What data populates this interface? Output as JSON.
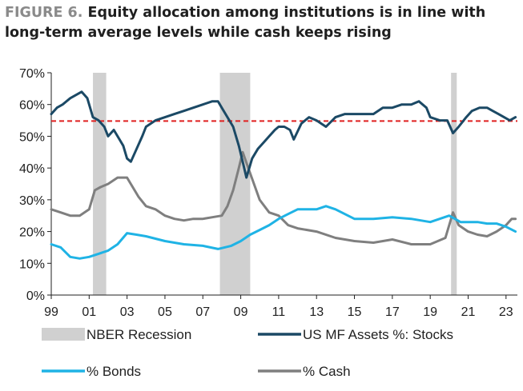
{
  "chart_data": {
    "type": "line",
    "title_prefix": "FIGURE 6.",
    "title": "Equity allocation among institutions is in line with long-term average levels while cash keeps rising",
    "x_tick_labels": [
      "99",
      "01",
      "03",
      "05",
      "07",
      "09",
      "11",
      "13",
      "15",
      "17",
      "19",
      "21",
      "23"
    ],
    "x_range": [
      1999.0,
      2023.6
    ],
    "y_tick_labels": [
      "0%",
      "10%",
      "20%",
      "30%",
      "40%",
      "50%",
      "60%",
      "70%"
    ],
    "y_range": [
      0,
      70
    ],
    "average_line": {
      "value": 54.8,
      "color": "#e02020"
    },
    "recessions": [
      {
        "start": 2001.2,
        "end": 2001.9
      },
      {
        "start": 2007.9,
        "end": 2009.5
      },
      {
        "start": 2020.1,
        "end": 2020.4
      }
    ],
    "legend": [
      {
        "label": "NBER Recession",
        "kind": "box",
        "color": "#d0d0d0"
      },
      {
        "label": "US MF Assets %: Stocks",
        "kind": "line",
        "color": "#1b4965"
      },
      {
        "label": "% Bonds",
        "kind": "line",
        "color": "#1fb3e5"
      },
      {
        "label": "% Cash",
        "kind": "line",
        "color": "#7f7f7f"
      }
    ],
    "series": [
      {
        "name": "US MF Assets %: Stocks",
        "color": "#1b4965",
        "x": [
          1999.0,
          1999.3,
          1999.6,
          2000.0,
          2000.3,
          2000.6,
          2000.9,
          2001.2,
          2001.5,
          2001.8,
          2002.0,
          2002.3,
          2002.6,
          2002.8,
          2003.0,
          2003.2,
          2003.5,
          2003.8,
          2004.0,
          2004.5,
          2005.0,
          2005.5,
          2006.0,
          2006.5,
          2007.0,
          2007.5,
          2007.8,
          2008.0,
          2008.3,
          2008.6,
          2008.9,
          2009.1,
          2009.3,
          2009.6,
          2009.9,
          2010.2,
          2010.5,
          2010.8,
          2011.0,
          2011.3,
          2011.6,
          2011.8,
          2012.2,
          2012.6,
          2013.0,
          2013.5,
          2014.0,
          2014.5,
          2015.0,
          2015.5,
          2016.0,
          2016.5,
          2017.0,
          2017.5,
          2018.0,
          2018.4,
          2018.8,
          2019.0,
          2019.5,
          2019.9,
          2020.2,
          2020.5,
          2020.9,
          2021.2,
          2021.6,
          2022.0,
          2022.3,
          2022.6,
          2022.9,
          2023.2,
          2023.5
        ],
        "values": [
          57,
          59,
          60,
          62,
          63,
          64,
          62,
          56,
          55,
          53,
          50,
          52,
          49,
          47,
          43,
          42,
          46,
          50,
          53,
          55,
          56,
          57,
          58,
          59,
          60,
          61,
          61,
          59,
          56,
          53,
          47,
          42,
          37,
          43,
          46,
          48,
          50,
          52,
          53,
          53,
          52,
          49,
          54,
          56,
          55,
          53,
          56,
          57,
          57,
          57,
          57,
          59,
          59,
          60,
          60,
          61,
          59,
          56,
          55,
          55,
          51,
          53,
          56,
          58,
          59,
          59,
          58,
          57,
          56,
          55,
          56
        ]
      },
      {
        "name": "% Bonds",
        "color": "#1fb3e5",
        "x": [
          1999.0,
          1999.5,
          2000.0,
          2000.5,
          2001.0,
          2001.5,
          2002.0,
          2002.5,
          2003.0,
          2003.5,
          2004.0,
          2005.0,
          2006.0,
          2007.0,
          2007.8,
          2008.5,
          2009.0,
          2009.5,
          2010.0,
          2010.5,
          2011.0,
          2011.5,
          2012.0,
          2012.5,
          2013.0,
          2013.5,
          2014.0,
          2015.0,
          2016.0,
          2017.0,
          2018.0,
          2019.0,
          2020.0,
          2020.3,
          2020.6,
          2021.0,
          2021.5,
          2022.0,
          2022.5,
          2023.0,
          2023.5
        ],
        "values": [
          16,
          15,
          12,
          11.5,
          12,
          13,
          14,
          16,
          19.5,
          19,
          18.5,
          17,
          16,
          15.5,
          14.5,
          15.5,
          17,
          19,
          20.5,
          22,
          24,
          25.5,
          27,
          27,
          27,
          28,
          27,
          24,
          24,
          24.5,
          24,
          23,
          25,
          24,
          23,
          23,
          23,
          22.5,
          22.5,
          21.5,
          20
        ]
      },
      {
        "name": "% Cash",
        "color": "#7f7f7f",
        "x": [
          1999.0,
          1999.5,
          2000.0,
          2000.5,
          2001.0,
          2001.3,
          2001.6,
          2002.0,
          2002.5,
          2003.0,
          2003.3,
          2003.6,
          2004.0,
          2004.5,
          2005.0,
          2005.5,
          2006.0,
          2006.5,
          2007.0,
          2007.5,
          2008.0,
          2008.3,
          2008.6,
          2008.9,
          2009.1,
          2009.4,
          2009.7,
          2010.0,
          2010.5,
          2011.0,
          2011.5,
          2012.0,
          2013.0,
          2014.0,
          2015.0,
          2016.0,
          2017.0,
          2018.0,
          2019.0,
          2019.8,
          2020.2,
          2020.5,
          2021.0,
          2021.5,
          2022.0,
          2022.5,
          2023.0,
          2023.3,
          2023.5
        ],
        "values": [
          27,
          26,
          25,
          25,
          27,
          33,
          34,
          35,
          37,
          37,
          34,
          31,
          28,
          27,
          25,
          24,
          23.5,
          24,
          24,
          24.5,
          25,
          28,
          33,
          40,
          45,
          40,
          35,
          30,
          26,
          25,
          22,
          21,
          20,
          18,
          17,
          16.5,
          17.5,
          16,
          16,
          18,
          26,
          22,
          20,
          19,
          18.5,
          20,
          22,
          24,
          24
        ]
      }
    ]
  }
}
